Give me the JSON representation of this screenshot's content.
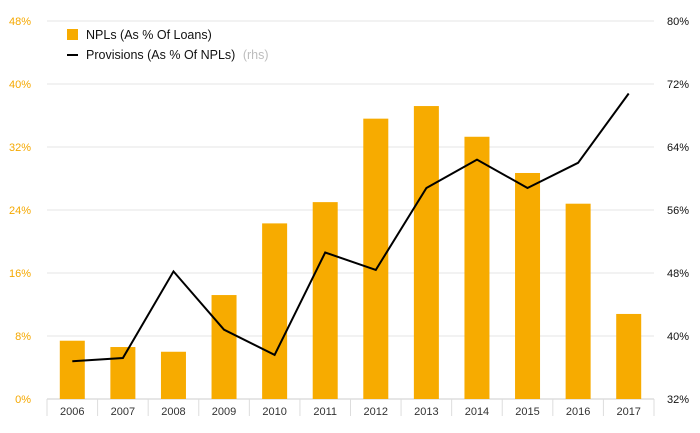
{
  "chart_data": {
    "type": "bar",
    "categories": [
      "2006",
      "2007",
      "2008",
      "2009",
      "2010",
      "2011",
      "2012",
      "2013",
      "2014",
      "2015",
      "2016",
      "2017"
    ],
    "series": [
      {
        "name": "NPLs (As % Of Loans)",
        "type": "bar",
        "axis": "left",
        "color": "#f7ab00",
        "values": [
          7.4,
          6.6,
          6.0,
          13.2,
          22.3,
          25.0,
          35.6,
          37.2,
          33.3,
          28.7,
          24.8,
          10.8
        ]
      },
      {
        "name": "Provisions (As % Of NPLs)",
        "name_suffix": "(rhs)",
        "type": "line",
        "axis": "right",
        "color": "#000000",
        "values": [
          36.8,
          37.2,
          48.2,
          40.8,
          37.6,
          50.6,
          48.4,
          58.8,
          62.4,
          58.8,
          62.0,
          70.8
        ]
      }
    ],
    "y_left": {
      "ticks": [
        "0%",
        "8%",
        "16%",
        "24%",
        "32%",
        "40%",
        "48%"
      ],
      "range": [
        0,
        48
      ],
      "color": "#f5a800"
    },
    "y_right": {
      "ticks": [
        "32%",
        "40%",
        "48%",
        "56%",
        "64%",
        "72%",
        "80%"
      ],
      "range": [
        32,
        80
      ]
    },
    "grid": true,
    "legend_position": "top-left"
  }
}
